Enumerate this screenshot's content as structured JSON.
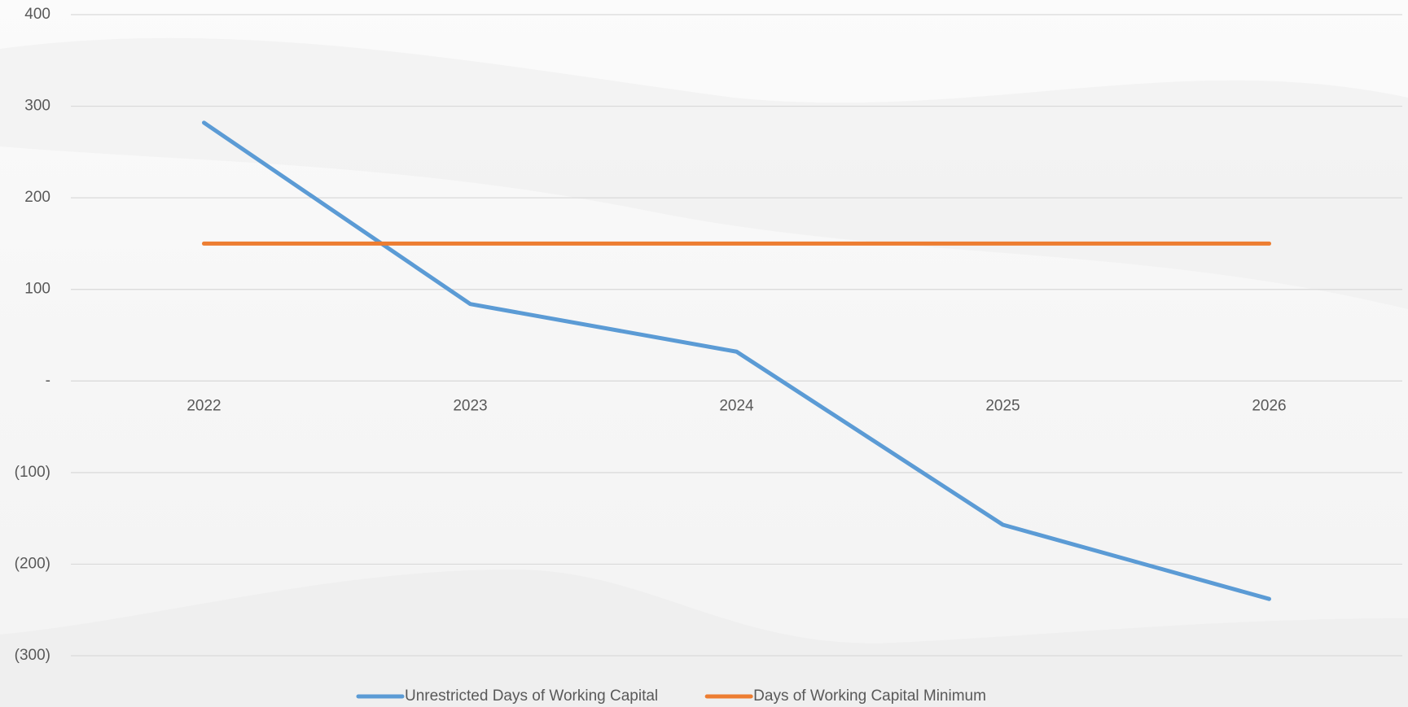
{
  "chart_data": {
    "type": "line",
    "categories": [
      "2022",
      "2023",
      "2024",
      "2025",
      "2026"
    ],
    "series": [
      {
        "name": "Unrestricted Days of Working Capital",
        "color": "#5b9bd5",
        "values": [
          282,
          84,
          32,
          -157,
          -238
        ]
      },
      {
        "name": "Days of Working Capital Minimum",
        "color": "#ed7d31",
        "values": [
          150,
          150,
          150,
          150,
          150
        ]
      }
    ],
    "ylim": [
      -300,
      400
    ],
    "yticks": [
      {
        "value": -300,
        "label": "(300)"
      },
      {
        "value": -200,
        "label": "(200)"
      },
      {
        "value": -100,
        "label": "(100)"
      },
      {
        "value": 0,
        "label": "-"
      },
      100,
      200,
      300,
      400
    ],
    "grid": true,
    "legend": "bottom"
  }
}
